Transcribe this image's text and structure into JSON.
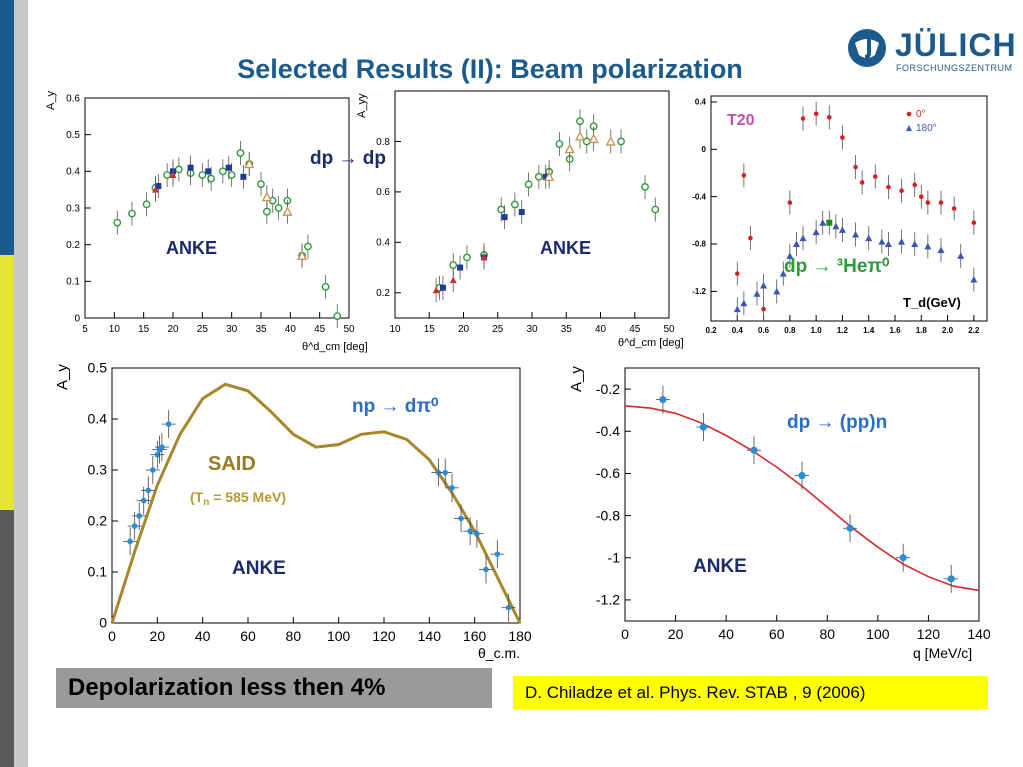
{
  "slide_title": "Selected Results (II): Beam polarization",
  "logo": {
    "name": "JÜLICH",
    "subtitle": "FORSCHUNGSZENTRUM"
  },
  "colors": {
    "title": "#1b5a8c",
    "stripe_blue": "#1b5a8c",
    "stripe_yellow": "#e6e63c",
    "stripe_dark": "#5a5a5a",
    "stripe_grey": "#b8b8b8"
  },
  "depolarization_note": "Depolarization less then 4%",
  "reference": "D. Chiladze et al. Phys. Rev. STAB , 9 (2006)",
  "chart_data": [
    {
      "type": "scatter",
      "panel": "dp-ay",
      "ylabel": "A_y",
      "xlabel": "θ^d_cm [deg]",
      "xlim": [
        5,
        50
      ],
      "ylim": [
        0,
        0.6
      ],
      "xticks": [
        5,
        10,
        15,
        20,
        25,
        30,
        35,
        40,
        45,
        50
      ],
      "yticks": [
        0,
        0.1,
        0.2,
        0.3,
        0.4,
        0.5,
        0.6
      ],
      "annotation": "ANKE",
      "series": [
        {
          "marker": "open-circle",
          "color": "#2e9a3a",
          "points": [
            [
              10.5,
              0.26
            ],
            [
              13,
              0.285
            ],
            [
              15.5,
              0.31
            ],
            [
              17,
              0.355
            ],
            [
              19,
              0.39
            ],
            [
              21,
              0.405
            ],
            [
              23,
              0.395
            ],
            [
              25,
              0.39
            ],
            [
              26.5,
              0.38
            ],
            [
              28.5,
              0.4
            ],
            [
              30,
              0.39
            ],
            [
              31.5,
              0.45
            ],
            [
              33,
              0.42
            ],
            [
              35,
              0.365
            ],
            [
              36,
              0.29
            ],
            [
              37,
              0.32
            ],
            [
              38,
              0.3
            ],
            [
              39.5,
              0.32
            ],
            [
              42,
              0.17
            ],
            [
              43,
              0.195
            ],
            [
              46,
              0.085
            ],
            [
              48,
              0.005
            ]
          ]
        },
        {
          "marker": "square",
          "color": "#1f3a9a",
          "points": [
            [
              17.5,
              0.36
            ],
            [
              20,
              0.4
            ],
            [
              23,
              0.41
            ],
            [
              26,
              0.4
            ],
            [
              29.5,
              0.41
            ],
            [
              32,
              0.385
            ]
          ]
        },
        {
          "marker": "triangle",
          "color": "#d13030",
          "points": [
            [
              17,
              0.35
            ],
            [
              20,
              0.39
            ]
          ]
        },
        {
          "marker": "open-triangle",
          "color": "#c89050",
          "points": [
            [
              33,
              0.42
            ],
            [
              36,
              0.33
            ],
            [
              39.5,
              0.29
            ],
            [
              42,
              0.17
            ]
          ]
        }
      ]
    },
    {
      "type": "scatter",
      "panel": "dp-ayy",
      "ylabel": "A_yy",
      "xlabel": "θ^d_cm [deg]",
      "xlim": [
        10,
        50
      ],
      "ylim": [
        0.1,
        1.0
      ],
      "xticks": [
        10,
        15,
        20,
        25,
        30,
        35,
        40,
        45,
        50
      ],
      "yticks": [
        0.2,
        0.4,
        0.6,
        0.8
      ],
      "annotation": "ANKE",
      "reaction": "dp → dp",
      "series": [
        {
          "marker": "open-circle",
          "color": "#2e9a3a",
          "points": [
            [
              16.5,
              0.22
            ],
            [
              18.5,
              0.31
            ],
            [
              20.5,
              0.34
            ],
            [
              23,
              0.35
            ],
            [
              25.5,
              0.53
            ],
            [
              27.5,
              0.55
            ],
            [
              29.5,
              0.63
            ],
            [
              31,
              0.66
            ],
            [
              32.5,
              0.68
            ],
            [
              34,
              0.79
            ],
            [
              35.5,
              0.73
            ],
            [
              37,
              0.88
            ],
            [
              38,
              0.8
            ],
            [
              39,
              0.86
            ],
            [
              43,
              0.8
            ],
            [
              46.5,
              0.62
            ],
            [
              48,
              0.53
            ]
          ]
        },
        {
          "marker": "square",
          "color": "#1f3a9a",
          "points": [
            [
              17,
              0.22
            ],
            [
              19.5,
              0.3
            ],
            [
              23,
              0.34
            ],
            [
              26,
              0.5
            ],
            [
              28.5,
              0.52
            ],
            [
              32,
              0.66
            ]
          ]
        },
        {
          "marker": "triangle",
          "color": "#d13030",
          "points": [
            [
              16,
              0.21
            ],
            [
              18.5,
              0.25
            ],
            [
              23,
              0.34
            ]
          ]
        },
        {
          "marker": "open-triangle",
          "color": "#c89050",
          "points": [
            [
              32.5,
              0.66
            ],
            [
              35.5,
              0.77
            ],
            [
              37,
              0.82
            ],
            [
              39,
              0.81
            ],
            [
              41.5,
              0.8
            ]
          ]
        }
      ]
    },
    {
      "type": "scatter",
      "panel": "dp-3hepi0",
      "xlabel": "T_d(GeV)",
      "xlim": [
        0.2,
        2.3
      ],
      "ylim": [
        -1.45,
        0.45
      ],
      "xticks": [
        0.2,
        0.4,
        0.6,
        0.8,
        1.0,
        1.2,
        1.4,
        1.6,
        1.8,
        2.0,
        2.2
      ],
      "xtick_labels": [
        "0.2",
        "0.4",
        "0.6",
        "0.8",
        "1.0",
        "1.2",
        "1.4",
        "1.6",
        "1.8",
        "2.0",
        "2.2"
      ],
      "yticks": [
        0.4,
        0,
        -0.4,
        -0.8,
        -1.2
      ],
      "ytick_labels": [
        "0.4",
        "0",
        "-0.4",
        "-0.8",
        "-1.2"
      ],
      "panel_label": "T20",
      "reaction": "dp → ³Heπ⁰",
      "legend": [
        "0°",
        "180°"
      ],
      "series": [
        {
          "name": "0°",
          "marker": "dot",
          "color": "#d42020",
          "points": [
            [
              0.4,
              -1.05
            ],
            [
              0.45,
              -0.22
            ],
            [
              0.5,
              -0.75
            ],
            [
              0.6,
              -1.35
            ],
            [
              0.8,
              -0.45
            ],
            [
              0.9,
              0.26
            ],
            [
              1.0,
              0.3
            ],
            [
              1.1,
              0.27
            ],
            [
              1.2,
              0.1
            ],
            [
              1.3,
              -0.15
            ],
            [
              1.35,
              -0.28
            ],
            [
              1.45,
              -0.23
            ],
            [
              1.55,
              -0.32
            ],
            [
              1.65,
              -0.35
            ],
            [
              1.75,
              -0.3
            ],
            [
              1.8,
              -0.4
            ],
            [
              1.85,
              -0.45
            ],
            [
              1.95,
              -0.45
            ],
            [
              2.05,
              -0.5
            ],
            [
              2.2,
              -0.62
            ]
          ]
        },
        {
          "name": "180°",
          "marker": "triangle",
          "color": "#3a55b5",
          "points": [
            [
              0.4,
              -1.35
            ],
            [
              0.45,
              -1.3
            ],
            [
              0.55,
              -1.22
            ],
            [
              0.6,
              -1.15
            ],
            [
              0.7,
              -1.2
            ],
            [
              0.75,
              -1.05
            ],
            [
              0.8,
              -0.9
            ],
            [
              0.85,
              -0.8
            ],
            [
              0.9,
              -0.75
            ],
            [
              1.0,
              -0.7
            ],
            [
              1.05,
              -0.62
            ],
            [
              1.15,
              -0.65
            ],
            [
              1.2,
              -0.68
            ],
            [
              1.3,
              -0.72
            ],
            [
              1.4,
              -0.75
            ],
            [
              1.5,
              -0.78
            ],
            [
              1.55,
              -0.8
            ],
            [
              1.65,
              -0.78
            ],
            [
              1.75,
              -0.8
            ],
            [
              1.85,
              -0.82
            ],
            [
              1.95,
              -0.85
            ],
            [
              2.1,
              -0.9
            ],
            [
              2.2,
              -1.1
            ]
          ]
        },
        {
          "name": "green",
          "marker": "square",
          "color": "#1e8a1e",
          "points": [
            [
              1.1,
              -0.62
            ]
          ]
        }
      ]
    },
    {
      "type": "line",
      "panel": "np-dpi0",
      "ylabel": "A_y",
      "xlabel": "θ_c.m.",
      "xlim": [
        0,
        180
      ],
      "ylim": [
        0,
        0.5
      ],
      "xticks": [
        0,
        20,
        40,
        60,
        80,
        100,
        120,
        140,
        160,
        180
      ],
      "yticks": [
        0,
        0.1,
        0.2,
        0.3,
        0.4,
        0.5
      ],
      "reaction": "np → dπ⁰",
      "model_label": "SAID",
      "model_energy_prefix": "(T",
      "model_energy_sub": "n",
      "model_energy_suffix": " = 585 MeV)",
      "annotation": "ANKE",
      "model_curve": [
        [
          0,
          0
        ],
        [
          10,
          0.14
        ],
        [
          20,
          0.27
        ],
        [
          30,
          0.37
        ],
        [
          40,
          0.44
        ],
        [
          50,
          0.468
        ],
        [
          60,
          0.455
        ],
        [
          70,
          0.415
        ],
        [
          80,
          0.37
        ],
        [
          90,
          0.345
        ],
        [
          100,
          0.35
        ],
        [
          110,
          0.37
        ],
        [
          120,
          0.375
        ],
        [
          130,
          0.36
        ],
        [
          140,
          0.32
        ],
        [
          150,
          0.255
        ],
        [
          160,
          0.18
        ],
        [
          170,
          0.09
        ],
        [
          180,
          0
        ]
      ],
      "points": [
        [
          8,
          0.16
        ],
        [
          10,
          0.19
        ],
        [
          12,
          0.21
        ],
        [
          14,
          0.24
        ],
        [
          16,
          0.26
        ],
        [
          18,
          0.3
        ],
        [
          20,
          0.33
        ],
        [
          21,
          0.34
        ],
        [
          22,
          0.345
        ],
        [
          25,
          0.39
        ],
        [
          144,
          0.295
        ],
        [
          147,
          0.295
        ],
        [
          150,
          0.265
        ],
        [
          154,
          0.205
        ],
        [
          158,
          0.18
        ],
        [
          161,
          0.175
        ],
        [
          165,
          0.105
        ],
        [
          170,
          0.135
        ],
        [
          175,
          0.03
        ]
      ]
    },
    {
      "type": "line",
      "panel": "dp-ppn",
      "ylabel": "A_y",
      "xlabel": "q [MeV/c]",
      "xlim": [
        0,
        140
      ],
      "ylim": [
        -1.3,
        -0.1
      ],
      "xticks": [
        0,
        20,
        40,
        60,
        80,
        100,
        120,
        140
      ],
      "yticks": [
        -0.2,
        -0.4,
        -0.6,
        -0.8,
        -1,
        -1.2
      ],
      "ytick_labels": [
        "-0.2",
        "-0.4",
        "-0.6",
        "-0.8",
        "-1",
        "-1.2"
      ],
      "reaction": "dp → (pp)n",
      "annotation": "ANKE",
      "model_curve": [
        [
          0,
          -0.28
        ],
        [
          10,
          -0.29
        ],
        [
          20,
          -0.315
        ],
        [
          30,
          -0.36
        ],
        [
          40,
          -0.42
        ],
        [
          50,
          -0.49
        ],
        [
          60,
          -0.57
        ],
        [
          70,
          -0.66
        ],
        [
          80,
          -0.76
        ],
        [
          90,
          -0.86
        ],
        [
          100,
          -0.95
        ],
        [
          110,
          -1.03
        ],
        [
          120,
          -1.09
        ],
        [
          130,
          -1.135
        ],
        [
          140,
          -1.155
        ]
      ],
      "points": [
        [
          15,
          -0.25
        ],
        [
          31,
          -0.38
        ],
        [
          51,
          -0.49
        ],
        [
          70,
          -0.61
        ],
        [
          89,
          -0.86
        ],
        [
          110,
          -1.0
        ],
        [
          129,
          -1.1
        ]
      ]
    }
  ]
}
